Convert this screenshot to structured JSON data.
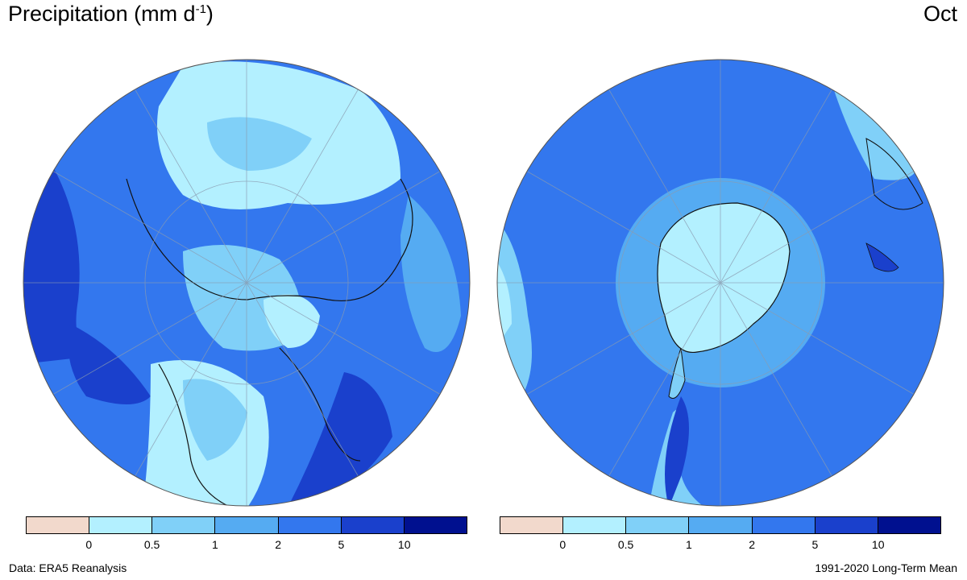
{
  "header": {
    "title_main": "Precipitation (mm d",
    "title_sup": "-1",
    "title_close": ")",
    "month": "Oct"
  },
  "footer": {
    "source": "Data: ERA5 Reanalysis",
    "period": "1991-2020 Long-Term Mean"
  },
  "colorbar": {
    "colors": [
      "#f2d9cc",
      "#b3f0ff",
      "#80d0f8",
      "#55abf2",
      "#3377ee",
      "#1a40cc",
      "#00108f"
    ],
    "ticks": [
      "0",
      "0.5",
      "1",
      "2",
      "5",
      "10"
    ]
  },
  "maps": [
    {
      "name": "north-hemisphere"
    },
    {
      "name": "south-hemisphere"
    }
  ]
}
